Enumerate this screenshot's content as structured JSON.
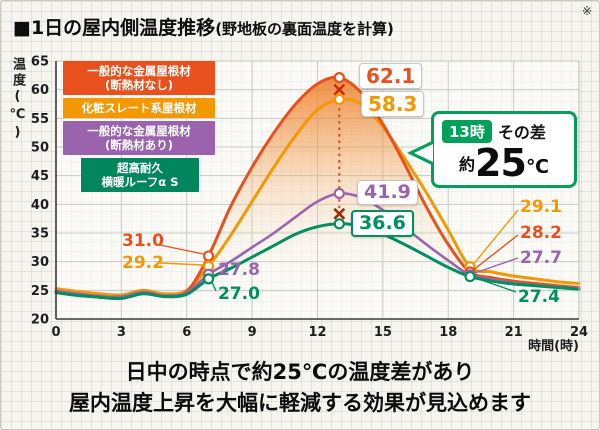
{
  "note_mark": "※",
  "title": {
    "main": "■1日の屋内側温度推移",
    "sub": "(野地板の裏面温度を計算)"
  },
  "footer": {
    "line1": "日中の時点で約25℃の温度差があり",
    "line2": "屋内温度上昇を大幅に軽減する効果が見込めます"
  },
  "callout": {
    "time": "13時",
    "label": "その差",
    "approx": "約",
    "value": "25",
    "unit": "℃"
  },
  "legend": [
    {
      "lines": [
        "一般的な金属屋根材",
        "(断熱材なし)"
      ],
      "bg": "#e8511d"
    },
    {
      "lines": [
        "化粧スレート系屋根材"
      ],
      "bg": "#f39800"
    },
    {
      "lines": [
        "一般的な金属屋根材",
        "(断熱材あり)"
      ],
      "bg": "#9b63ad"
    },
    {
      "lines": [
        "超高耐久",
        "横暖ルーフα S"
      ],
      "bg": "#00855c"
    }
  ],
  "chart_data": {
    "type": "line",
    "title": "1日の屋内側温度推移(野地板の裏面温度を計算)",
    "ylabel": "温度(℃)",
    "xlabel": "時間(時)",
    "xlim": [
      0,
      24
    ],
    "ylim": [
      20,
      65
    ],
    "x_ticks": [
      0,
      3,
      6,
      9,
      12,
      15,
      18,
      21,
      24
    ],
    "y_ticks": [
      20,
      25,
      30,
      35,
      40,
      45,
      50,
      55,
      60,
      65
    ],
    "grid": true,
    "x": [
      0,
      1,
      2,
      3,
      4,
      5,
      6,
      7,
      8,
      9,
      10,
      11,
      12,
      13,
      14,
      15,
      16,
      17,
      18,
      19,
      20,
      21,
      22,
      23,
      24
    ],
    "series": [
      {
        "name": "一般的な金属屋根材(断熱材なし)",
        "color": "#e8511d",
        "width": 3,
        "values": [
          24.8,
          24.2,
          23.8,
          23.6,
          24.6,
          23.9,
          24.8,
          31.0,
          39.5,
          46.5,
          52.5,
          57.5,
          61.0,
          62.1,
          59.5,
          54.0,
          47.0,
          39.5,
          33.0,
          28.2,
          27.2,
          26.6,
          26.2,
          25.8,
          25.5
        ]
      },
      {
        "name": "化粧スレート系屋根材",
        "color": "#f39800",
        "width": 3,
        "values": [
          25.3,
          24.8,
          24.4,
          24.2,
          25.0,
          24.4,
          25.0,
          29.2,
          34.5,
          40.5,
          46.5,
          52.0,
          56.5,
          58.3,
          57.5,
          53.5,
          48.0,
          42.0,
          35.5,
          29.1,
          28.2,
          27.5,
          27.0,
          26.5,
          26.2
        ]
      },
      {
        "name": "一般的な金属屋根材(断熱材あり)",
        "color": "#9b63ad",
        "width": 2.6,
        "values": [
          24.9,
          24.4,
          24.0,
          23.9,
          24.7,
          24.1,
          24.6,
          27.8,
          30.0,
          32.5,
          35.0,
          37.8,
          40.5,
          41.9,
          41.2,
          39.0,
          36.0,
          33.0,
          30.2,
          27.7,
          26.9,
          26.3,
          25.9,
          25.6,
          25.3
        ]
      },
      {
        "name": "超高耐久 横暖ルーフα S",
        "color": "#008f5f",
        "width": 3,
        "values": [
          24.6,
          24.1,
          23.8,
          23.6,
          24.4,
          23.9,
          24.3,
          27.0,
          28.8,
          30.8,
          32.8,
          34.8,
          36.1,
          36.6,
          36.2,
          34.8,
          33.0,
          31.0,
          29.0,
          27.4,
          26.6,
          26.1,
          25.8,
          25.5,
          25.2
        ]
      }
    ],
    "difference_line": {
      "hour": 13,
      "from": 62.1,
      "to": 36.6,
      "label": "13時 その差 約25℃"
    },
    "annotations": [
      {
        "id": "peak-no-insulation",
        "text": "62.1",
        "color": "#e8511d",
        "hour": 13,
        "temp": 62.1
      },
      {
        "id": "peak-slate",
        "text": "58.3",
        "color": "#f39800",
        "hour": 13,
        "temp": 58.3
      },
      {
        "id": "peak-insulated",
        "text": "41.9",
        "color": "#9b63ad",
        "hour": 13,
        "temp": 41.9
      },
      {
        "id": "peak-yokodan",
        "text": "36.6",
        "color": "#008f5f",
        "hour": 13,
        "temp": 36.6
      },
      {
        "id": "morning-no-insulation",
        "text": "31.0",
        "color": "#e8511d",
        "hour": 7,
        "temp": 31.0
      },
      {
        "id": "morning-slate",
        "text": "29.2",
        "color": "#f39800",
        "hour": 7,
        "temp": 29.2
      },
      {
        "id": "morning-insulated",
        "text": "27.8",
        "color": "#9b63ad",
        "hour": 7,
        "temp": 27.8
      },
      {
        "id": "morning-yokodan",
        "text": "27.0",
        "color": "#008f5f",
        "hour": 7,
        "temp": 27.0
      },
      {
        "id": "evening-slate",
        "text": "29.1",
        "color": "#f39800",
        "hour": 19,
        "temp": 29.1
      },
      {
        "id": "evening-no-insulation",
        "text": "28.2",
        "color": "#e8511d",
        "hour": 19,
        "temp": 28.2
      },
      {
        "id": "evening-insulated",
        "text": "27.7",
        "color": "#9b63ad",
        "hour": 19,
        "temp": 27.7
      },
      {
        "id": "evening-yokodan",
        "text": "27.4",
        "color": "#008f5f",
        "hour": 19,
        "temp": 27.4
      }
    ]
  }
}
